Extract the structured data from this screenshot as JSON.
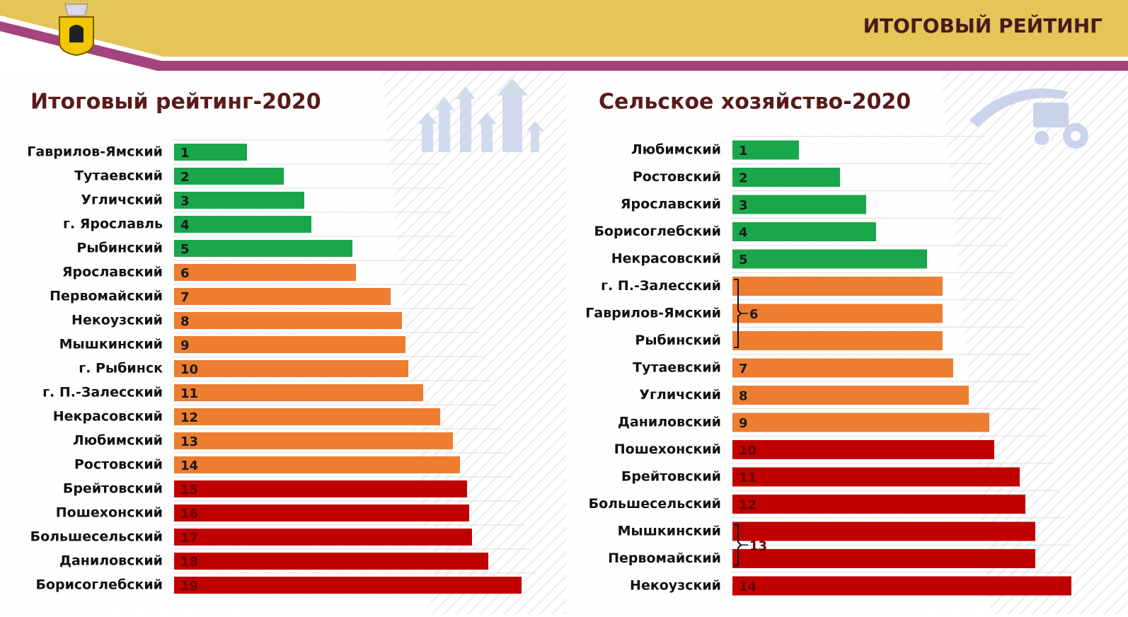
{
  "header": {
    "title": "ИТОГОВЫЙ РЕЙТИНГ"
  },
  "chart_data": [
    {
      "type": "bar",
      "orientation": "horizontal",
      "title": "Итоговый рейтинг-2020",
      "categories": [
        "Гаврилов-Ямский",
        "Тутаевский",
        "Угличский",
        "г. Ярославль",
        "Рыбинский",
        "Ярославский",
        "Первомайский",
        "Некоузский",
        "Мышкинский",
        "г. Рыбинск",
        "г. П.-Залесский",
        "Некрасовский",
        "Любимский",
        "Ростовский",
        "Брейтовский",
        "Пошехонский",
        "Большесельский",
        "Даниловский",
        "Борисоглебский"
      ],
      "values": [
        103,
        155,
        184,
        194,
        252,
        257,
        306,
        322,
        327,
        331,
        352,
        376,
        394,
        404,
        414,
        417,
        421,
        444,
        491
      ],
      "ranks": [
        1,
        2,
        3,
        4,
        5,
        6,
        7,
        8,
        9,
        10,
        11,
        12,
        13,
        14,
        15,
        16,
        17,
        18,
        19
      ],
      "colors": [
        "#1aa64a",
        "#1aa64a",
        "#1aa64a",
        "#1aa64a",
        "#1aa64a",
        "#ed7d31",
        "#ed7d31",
        "#ed7d31",
        "#ed7d31",
        "#ed7d31",
        "#ed7d31",
        "#ed7d31",
        "#ed7d31",
        "#ed7d31",
        "#c00000",
        "#c00000",
        "#c00000",
        "#c00000",
        "#c00000"
      ]
    },
    {
      "type": "bar",
      "orientation": "horizontal",
      "title": "Сельское хозяйство-2020",
      "categories": [
        "Любимский",
        "Ростовский",
        "Ярославский",
        "Борисоглебский",
        "Некрасовский",
        "г. П.-Залесский",
        "Гаврилов-Ямский",
        "Рыбинский",
        "Тутаевский",
        "Угличский",
        "Даниловский",
        "Пошехонский",
        "Брейтовский",
        "Большесельский",
        "Мышкинский",
        "Первомайский",
        "Некоузский"
      ],
      "values": [
        94,
        152,
        189,
        203,
        275,
        297,
        297,
        297,
        312,
        334,
        363,
        370,
        406,
        414,
        428,
        428,
        479
      ],
      "ranks": [
        1,
        2,
        3,
        4,
        5,
        6,
        6,
        6,
        7,
        8,
        9,
        10,
        11,
        12,
        13,
        13,
        14
      ],
      "colors": [
        "#1aa64a",
        "#1aa64a",
        "#1aa64a",
        "#1aa64a",
        "#1aa64a",
        "#ed7d31",
        "#ed7d31",
        "#ed7d31",
        "#ed7d31",
        "#ed7d31",
        "#ed7d31",
        "#c00000",
        "#c00000",
        "#c00000",
        "#c00000",
        "#c00000",
        "#c00000"
      ]
    }
  ]
}
